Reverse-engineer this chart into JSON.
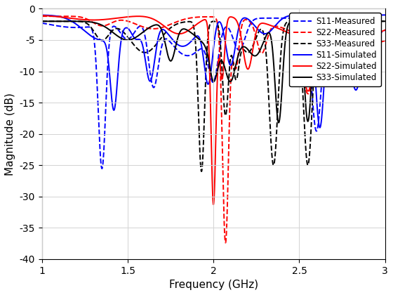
{
  "title": "",
  "xlabel": "Frequency (GHz)",
  "ylabel": "Magnitude (dB)",
  "xlim": [
    1,
    3
  ],
  "ylim": [
    -40,
    0
  ],
  "xticks": [
    1.0,
    1.5,
    2.0,
    2.5,
    3.0
  ],
  "yticks": [
    0,
    -5,
    -10,
    -15,
    -20,
    -25,
    -30,
    -35,
    -40
  ],
  "legend": [
    "S11-Measured",
    "S22-Measured",
    "S33-Measured",
    "S11-Simulated",
    "S22-Simulated",
    "S33-Simulated"
  ],
  "colors": {
    "S11": "#0000FF",
    "S22": "#FF0000",
    "S33": "#000000"
  },
  "figsize": [
    5.6,
    4.2
  ],
  "dpi": 100
}
